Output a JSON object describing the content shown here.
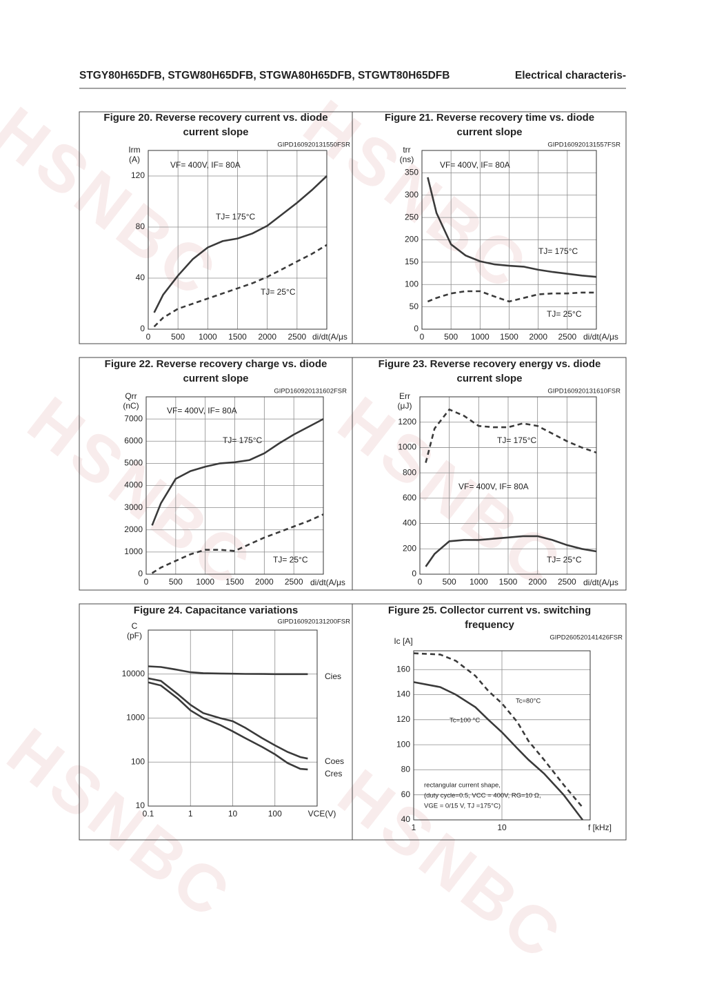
{
  "header": {
    "parts": [
      "STGY80H65DFB, STGW80H65DFB, STGWA80H65DFB, STGWT80H65DFB",
      "Electrical characteris-"
    ]
  },
  "watermark": "HSNBC",
  "chart_data": [
    {
      "type": "line",
      "title": [
        "Figure 20. Reverse recovery current vs. diode",
        "current slope"
      ],
      "figure_id": "GIPD160920131550FSR",
      "ylabel": [
        "Irm",
        "(A)"
      ],
      "xlabel": "di/dt(A/μs",
      "annotation": [
        "VF= 400V, IF= 80A"
      ],
      "x": [
        100,
        250,
        500,
        750,
        1000,
        1250,
        1500,
        1750,
        2000,
        2250,
        2500,
        2750,
        3000
      ],
      "series": [
        {
          "name": "TJ= 175°C",
          "color": "#3a3a3a",
          "dash": false,
          "values": [
            13,
            27,
            42,
            55,
            64,
            69,
            71,
            75,
            81,
            90,
            99,
            109,
            120
          ]
        },
        {
          "name": "TJ= 25°C",
          "color": "#3a3a3a",
          "dash": true,
          "values": [
            2,
            9,
            16,
            20,
            24,
            28,
            32,
            36,
            41,
            47,
            53,
            59,
            66
          ]
        }
      ],
      "xlim": [
        0,
        3000
      ],
      "xticks": [
        0,
        500,
        1000,
        1500,
        2000,
        2500
      ],
      "ylim": [
        0,
        140
      ],
      "yticks": [
        0,
        40,
        80,
        120
      ],
      "grid": true
    },
    {
      "type": "line",
      "title": [
        "Figure 21. Reverse recovery time vs. diode",
        "current slope"
      ],
      "figure_id": "GIPD160920131557FSR",
      "ylabel": [
        "trr",
        "(ns)"
      ],
      "xlabel": "di/dt(A/μs",
      "annotation": [
        "VF= 400V, IF= 80A"
      ],
      "x": [
        100,
        250,
        500,
        750,
        1000,
        1250,
        1500,
        1750,
        2000,
        2250,
        2500,
        2750,
        3000
      ],
      "series": [
        {
          "name": "TJ= 175°C",
          "color": "#3a3a3a",
          "dash": false,
          "values": [
            340,
            260,
            190,
            165,
            152,
            145,
            142,
            140,
            133,
            128,
            124,
            120,
            117
          ]
        },
        {
          "name": "TJ= 25°C",
          "color": "#3a3a3a",
          "dash": true,
          "values": [
            62,
            70,
            80,
            85,
            85,
            73,
            62,
            70,
            78,
            80,
            80,
            82,
            82
          ]
        }
      ],
      "xlim": [
        0,
        3000
      ],
      "xticks": [
        0,
        500,
        1000,
        1500,
        2000,
        2500
      ],
      "ylim": [
        0,
        400
      ],
      "yticks": [
        0,
        50,
        100,
        150,
        200,
        250,
        300,
        350
      ],
      "grid": true
    },
    {
      "type": "line",
      "title": [
        "Figure 22. Reverse recovery charge vs. diode",
        "current slope"
      ],
      "figure_id": "GIPD160920131602FSR",
      "ylabel": [
        "Qrr",
        "(nC)"
      ],
      "xlabel": "di/dt(A/μs",
      "annotation": [
        "VF= 400V, IF= 80A"
      ],
      "x": [
        100,
        250,
        500,
        750,
        1000,
        1250,
        1500,
        1750,
        2000,
        2250,
        2500,
        2750,
        3000
      ],
      "series": [
        {
          "name": "TJ= 175°C",
          "color": "#3a3a3a",
          "dash": false,
          "values": [
            2200,
            3200,
            4300,
            4650,
            4850,
            5000,
            5050,
            5150,
            5450,
            5900,
            6300,
            6650,
            7000
          ]
        },
        {
          "name": "TJ= 25°C",
          "color": "#3a3a3a",
          "dash": true,
          "values": [
            50,
            300,
            600,
            900,
            1100,
            1100,
            1050,
            1350,
            1650,
            1900,
            2150,
            2400,
            2700
          ]
        }
      ],
      "xlim": [
        0,
        3000
      ],
      "xticks": [
        0,
        500,
        1000,
        1500,
        2000,
        2500
      ],
      "ylim": [
        0,
        8000
      ],
      "yticks": [
        0,
        1000,
        2000,
        3000,
        4000,
        5000,
        6000,
        7000
      ],
      "grid": true
    },
    {
      "type": "line",
      "title": [
        "Figure 23. Reverse recovery energy vs. diode",
        "current slope"
      ],
      "figure_id": "GIPD160920131610FSR",
      "ylabel": [
        "Err",
        "(μJ)"
      ],
      "xlabel": "di/dt(A/μs",
      "annotation": [
        "VF= 400V, IF= 80A"
      ],
      "x": [
        100,
        250,
        500,
        750,
        1000,
        1250,
        1500,
        1750,
        2000,
        2250,
        2500,
        2750,
        3000
      ],
      "series": [
        {
          "name": "TJ= 175°C",
          "color": "#3a3a3a",
          "dash": true,
          "values": [
            880,
            1150,
            1300,
            1250,
            1170,
            1160,
            1160,
            1190,
            1170,
            1110,
            1050,
            1000,
            960
          ]
        },
        {
          "name": "TJ= 25°C",
          "color": "#3a3a3a",
          "dash": false,
          "values": [
            60,
            160,
            260,
            270,
            270,
            280,
            290,
            300,
            300,
            270,
            230,
            200,
            180
          ]
        }
      ],
      "xlim": [
        0,
        3000
      ],
      "xticks": [
        0,
        500,
        1000,
        1500,
        2000,
        2500
      ],
      "ylim": [
        0,
        1400
      ],
      "yticks": [
        0,
        200,
        400,
        600,
        800,
        1000,
        1200
      ],
      "grid": true
    },
    {
      "type": "line",
      "title": [
        "Figure 24. Capacitance variations"
      ],
      "figure_id": "GIPD160920131200FSR",
      "ylabel": [
        "C",
        "(pF)"
      ],
      "xlabel": "VCE(V)",
      "annotation": [],
      "x": [
        0.1,
        0.2,
        0.5,
        1,
        2,
        5,
        10,
        20,
        50,
        100,
        200,
        400,
        600
      ],
      "series": [
        {
          "name": "Cies",
          "color": "#3a3a3a",
          "dash": false,
          "values": [
            15000,
            14500,
            12500,
            11000,
            10500,
            10300,
            10200,
            10100,
            10050,
            10000,
            10000,
            10000,
            10000
          ]
        },
        {
          "name": "Coes",
          "color": "#3a3a3a",
          "dash": false,
          "values": [
            8000,
            7000,
            3500,
            2000,
            1300,
            1000,
            850,
            600,
            350,
            240,
            170,
            130,
            120
          ]
        },
        {
          "name": "Cres",
          "color": "#3a3a3a",
          "dash": false,
          "values": [
            6500,
            5500,
            2800,
            1500,
            1000,
            700,
            500,
            350,
            220,
            150,
            95,
            70,
            68
          ]
        }
      ],
      "xlog": true,
      "ylog": true,
      "xlim": [
        0.1,
        1000
      ],
      "xticks": [
        0.1,
        1,
        10,
        100
      ],
      "ylim": [
        10,
        100000
      ],
      "yticks": [
        10,
        100,
        1000,
        10000
      ],
      "grid": true
    },
    {
      "type": "line",
      "title": [
        "Figure 25. Collector current vs. switching",
        "frequency"
      ],
      "figure_id": "GIPD260520141426FSR",
      "ylabel": [
        "Ic [A]"
      ],
      "xlabel": "f [kHz]",
      "annotation": [
        "rectangular current shape,",
        "(duty cycle=0.5, VCC = 400V, RG=10 Ω,",
        "VGE = 0/15 V, TJ =175°C)"
      ],
      "x": [
        1,
        2,
        3,
        5,
        7,
        10,
        15,
        20,
        30,
        50,
        82
      ],
      "series": [
        {
          "name": "Tc=80°C",
          "color": "#3a3a3a",
          "dash": true,
          "values": [
            173,
            172,
            167,
            155,
            143,
            133,
            118,
            103,
            88,
            68,
            50
          ]
        },
        {
          "name": "Tc=100 °C",
          "color": "#3a3a3a",
          "dash": false,
          "values": [
            150,
            146,
            140,
            130,
            120,
            110,
            97,
            88,
            77,
            60,
            40
          ]
        }
      ],
      "xlog": true,
      "xlim": [
        1,
        100
      ],
      "xticks": [
        1,
        10
      ],
      "ylim": [
        40,
        175
      ],
      "yticks": [
        40,
        60,
        80,
        100,
        120,
        140,
        160
      ],
      "grid": true
    }
  ]
}
